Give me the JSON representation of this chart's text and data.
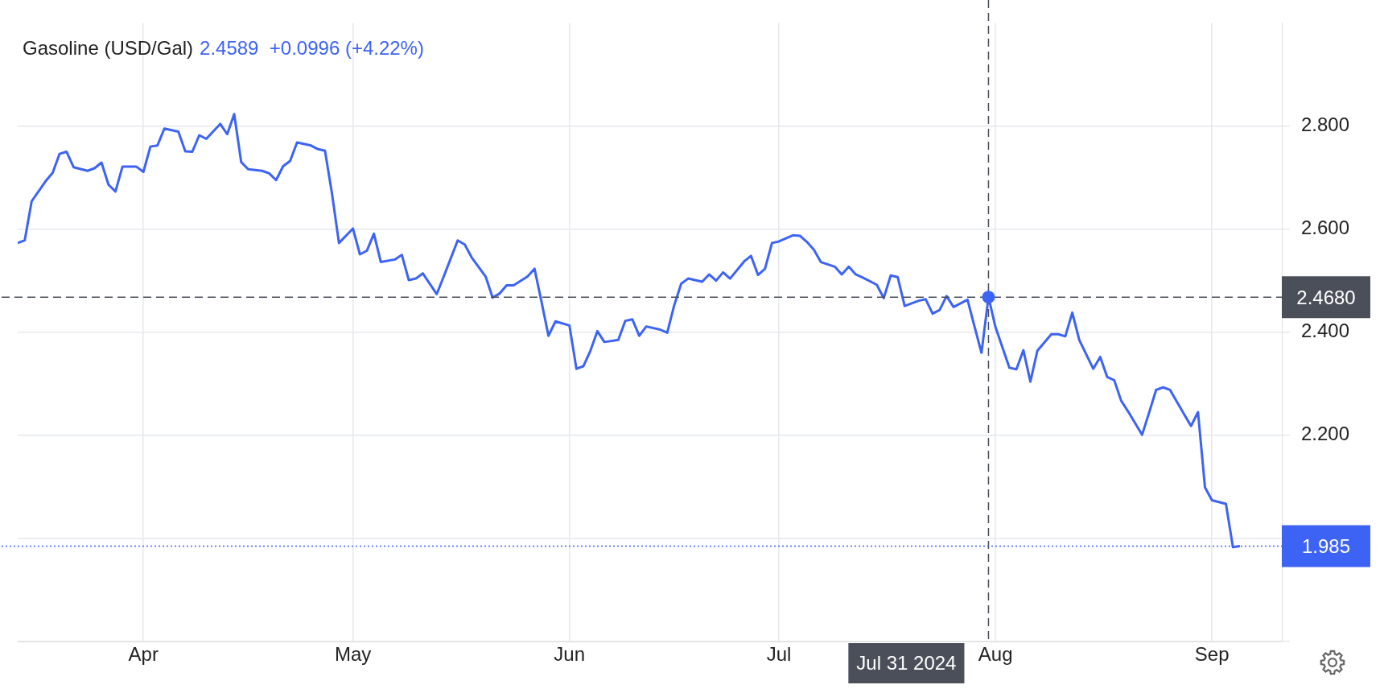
{
  "chart_data": {
    "type": "line",
    "title": "Gasoline (USD/Gal)",
    "subtitle": "2.4589  +0.0996 (+4.22%)",
    "x": [
      "2024-03-14",
      "2024-03-15",
      "2024-03-16",
      "2024-03-18",
      "2024-03-19",
      "2024-03-20",
      "2024-03-21",
      "2024-03-22",
      "2024-03-24",
      "2024-03-25",
      "2024-03-26",
      "2024-03-27",
      "2024-03-28",
      "2024-03-29",
      "2024-03-31",
      "2024-04-01",
      "2024-04-02",
      "2024-04-03",
      "2024-04-04",
      "2024-04-06",
      "2024-04-07",
      "2024-04-08",
      "2024-04-09",
      "2024-04-10",
      "2024-04-12",
      "2024-04-13",
      "2024-04-14",
      "2024-04-15",
      "2024-04-16",
      "2024-04-18",
      "2024-04-19",
      "2024-04-20",
      "2024-04-21",
      "2024-04-22",
      "2024-04-23",
      "2024-04-25",
      "2024-04-26",
      "2024-04-27",
      "2024-04-28",
      "2024-04-29",
      "2024-05-01",
      "2024-05-02",
      "2024-05-03",
      "2024-05-04",
      "2024-05-05",
      "2024-05-07",
      "2024-05-08",
      "2024-05-09",
      "2024-05-10",
      "2024-05-11",
      "2024-05-13",
      "2024-05-14",
      "2024-05-15",
      "2024-05-16",
      "2024-05-17",
      "2024-05-18",
      "2024-05-20",
      "2024-05-21",
      "2024-05-22",
      "2024-05-23",
      "2024-05-24",
      "2024-05-26",
      "2024-05-27",
      "2024-05-28",
      "2024-05-29",
      "2024-05-30",
      "2024-06-01",
      "2024-06-02",
      "2024-06-03",
      "2024-06-04",
      "2024-06-05",
      "2024-06-06",
      "2024-06-08",
      "2024-06-09",
      "2024-06-10",
      "2024-06-11",
      "2024-06-12",
      "2024-06-14",
      "2024-06-15",
      "2024-06-16",
      "2024-06-17",
      "2024-06-18",
      "2024-06-20",
      "2024-06-21",
      "2024-06-22",
      "2024-06-23",
      "2024-06-24",
      "2024-06-26",
      "2024-06-27",
      "2024-06-28",
      "2024-06-29",
      "2024-06-30",
      "2024-07-01",
      "2024-07-03",
      "2024-07-04",
      "2024-07-05",
      "2024-07-06",
      "2024-07-07",
      "2024-07-09",
      "2024-07-10",
      "2024-07-11",
      "2024-07-12",
      "2024-07-13",
      "2024-07-15",
      "2024-07-16",
      "2024-07-17",
      "2024-07-18",
      "2024-07-19",
      "2024-07-21",
      "2024-07-22",
      "2024-07-23",
      "2024-07-24",
      "2024-07-25",
      "2024-07-26",
      "2024-07-28",
      "2024-07-29",
      "2024-07-30",
      "2024-07-31",
      "2024-08-01",
      "2024-08-03",
      "2024-08-04",
      "2024-08-05",
      "2024-08-06",
      "2024-08-07",
      "2024-08-09",
      "2024-08-10",
      "2024-08-11",
      "2024-08-12",
      "2024-08-13",
      "2024-08-15",
      "2024-08-16",
      "2024-08-17",
      "2024-08-18",
      "2024-08-19",
      "2024-08-20",
      "2024-08-22",
      "2024-08-23",
      "2024-08-24",
      "2024-08-25",
      "2024-08-26",
      "2024-08-28",
      "2024-08-29",
      "2024-08-30",
      "2024-08-31",
      "2024-09-01",
      "2024-09-03",
      "2024-09-04",
      "2024-09-05"
    ],
    "series": [
      {
        "color": "#3d63f5",
        "values": [
          2.573,
          2.578,
          2.654,
          2.693,
          2.709,
          2.746,
          2.75,
          2.72,
          2.713,
          2.718,
          2.729,
          2.686,
          2.673,
          2.721,
          2.721,
          2.711,
          2.76,
          2.762,
          2.795,
          2.789,
          2.751,
          2.75,
          2.782,
          2.775,
          2.804,
          2.784,
          2.823,
          2.73,
          2.716,
          2.713,
          2.708,
          2.695,
          2.722,
          2.732,
          2.768,
          2.762,
          2.755,
          2.752,
          2.669,
          2.573,
          2.601,
          2.551,
          2.558,
          2.591,
          2.536,
          2.541,
          2.55,
          2.501,
          2.504,
          2.514,
          2.474,
          2.508,
          2.543,
          2.578,
          2.57,
          2.545,
          2.508,
          2.467,
          2.475,
          2.491,
          2.491,
          2.508,
          2.523,
          2.459,
          2.393,
          2.421,
          2.413,
          2.329,
          2.334,
          2.364,
          2.402,
          2.381,
          2.385,
          2.422,
          2.425,
          2.393,
          2.411,
          2.405,
          2.399,
          2.452,
          2.494,
          2.504,
          2.498,
          2.512,
          2.5,
          2.516,
          2.504,
          2.537,
          2.548,
          2.511,
          2.523,
          2.573,
          2.576,
          2.588,
          2.587,
          2.575,
          2.56,
          2.536,
          2.527,
          2.512,
          2.527,
          2.512,
          2.506,
          2.492,
          2.466,
          2.51,
          2.507,
          2.451,
          2.461,
          2.464,
          2.436,
          2.443,
          2.47,
          2.449,
          2.463,
          2.411,
          2.36,
          2.468,
          2.41,
          2.331,
          2.328,
          2.365,
          2.304,
          2.364,
          2.396,
          2.396,
          2.392,
          2.438,
          2.385,
          2.329,
          2.352,
          2.313,
          2.307,
          2.267,
          2.246,
          2.201,
          2.244,
          2.288,
          2.293,
          2.288,
          2.241,
          2.218,
          2.245,
          2.099,
          2.074,
          2.067,
          1.983,
          1.985
        ]
      }
    ],
    "xlim": [
      "2024-03-14",
      "2024-09-11"
    ],
    "xticks": [
      {
        "value": "2024-04-01",
        "label": "Apr"
      },
      {
        "value": "2024-05-01",
        "label": "May"
      },
      {
        "value": "2024-06-01",
        "label": "Jun"
      },
      {
        "value": "2024-07-01",
        "label": "Jul"
      },
      {
        "value": "2024-08-01",
        "label": "Aug"
      },
      {
        "value": "2024-09-01",
        "label": "Sep"
      }
    ],
    "ylim": [
      1.8,
      3.0
    ],
    "yticks": [
      {
        "value": 1.8,
        "label": null
      },
      {
        "value": 2.0,
        "label": null
      },
      {
        "value": 2.2,
        "label": "2.200"
      },
      {
        "value": 2.4,
        "label": "2.400"
      },
      {
        "value": 2.6,
        "label": "2.600"
      },
      {
        "value": 2.8,
        "label": "2.800"
      }
    ],
    "ref_lines": [
      {
        "axis": "y",
        "value": 2.468,
        "label": "2.4680",
        "color": "#4a4f5a",
        "line_style": "dashed"
      },
      {
        "axis": "x",
        "value": "2024-07-31",
        "label": "Jul 31 2024",
        "color": "#4a4f5a",
        "line_style": "dashed"
      },
      {
        "axis": "y",
        "value": 1.985,
        "label": "1.985",
        "color": "#3d63f5",
        "line_style": "dotted"
      }
    ],
    "grid": true,
    "legend": false,
    "marker": "none",
    "line_style": "solid"
  }
}
